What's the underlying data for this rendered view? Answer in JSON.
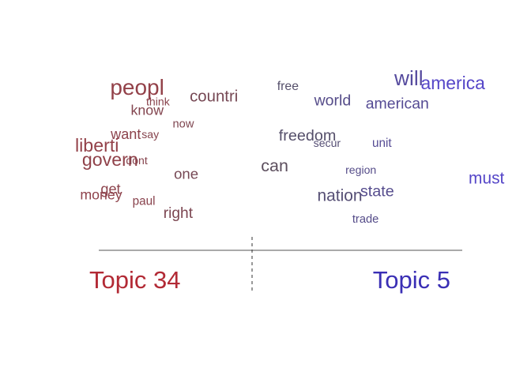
{
  "chart_data": {
    "type": "scatter",
    "title": "",
    "xlabel": "",
    "ylabel": "",
    "topics": {
      "left": {
        "label": "Topic 34",
        "color": "#b22a35"
      },
      "right": {
        "label": "Topic 5",
        "color": "#3a2fb5"
      }
    },
    "xlim": [
      0,
      1
    ],
    "ylim": [
      0,
      1
    ],
    "words": [
      {
        "word": "peopl",
        "x": 0.105,
        "y": 0.89,
        "weight": 1.0,
        "lean": 0.02
      },
      {
        "word": "think",
        "x": 0.175,
        "y": 0.82,
        "weight": 0.18,
        "lean": 0.1
      },
      {
        "word": "countri",
        "x": 0.298,
        "y": 0.845,
        "weight": 0.55,
        "lean": 0.25
      },
      {
        "word": "know",
        "x": 0.144,
        "y": 0.76,
        "weight": 0.4,
        "lean": 0.15
      },
      {
        "word": "now",
        "x": 0.234,
        "y": 0.68,
        "weight": 0.22,
        "lean": 0.18
      },
      {
        "word": "want",
        "x": 0.093,
        "y": 0.605,
        "weight": 0.42,
        "lean": 0.08
      },
      {
        "word": "say",
        "x": 0.157,
        "y": 0.61,
        "weight": 0.18,
        "lean": 0.12
      },
      {
        "word": "liberti",
        "x": 0.0,
        "y": 0.525,
        "weight": 0.72,
        "lean": 0.02
      },
      {
        "word": "govern",
        "x": 0.048,
        "y": 0.435,
        "weight": 0.72,
        "lean": 0.05
      },
      {
        "word": "dont",
        "x": 0.125,
        "y": 0.445,
        "weight": 0.18,
        "lean": 0.12
      },
      {
        "word": "one",
        "x": 0.235,
        "y": 0.35,
        "weight": 0.45,
        "lean": 0.25
      },
      {
        "word": "get",
        "x": 0.057,
        "y": 0.255,
        "weight": 0.42,
        "lean": 0.08
      },
      {
        "word": "money",
        "x": 0.035,
        "y": 0.22,
        "weight": 0.4,
        "lean": 0.06
      },
      {
        "word": "paul",
        "x": 0.14,
        "y": 0.185,
        "weight": 0.25,
        "lean": 0.1
      },
      {
        "word": "right",
        "x": 0.215,
        "y": 0.1,
        "weight": 0.48,
        "lean": 0.2
      },
      {
        "word": "free",
        "x": 0.48,
        "y": 0.92,
        "weight": 0.28,
        "lean": 0.55
      },
      {
        "word": "will",
        "x": 0.75,
        "y": 0.95,
        "weight": 0.9,
        "lean": 0.8
      },
      {
        "word": "america",
        "x": 0.97,
        "y": 0.925,
        "weight": 0.7,
        "lean": 1.0
      },
      {
        "word": "world",
        "x": 0.58,
        "y": 0.82,
        "weight": 0.5,
        "lean": 0.7
      },
      {
        "word": "american",
        "x": 0.733,
        "y": 0.8,
        "weight": 0.5,
        "lean": 0.75
      },
      {
        "word": "freedom",
        "x": 0.52,
        "y": 0.595,
        "weight": 0.52,
        "lean": 0.55
      },
      {
        "word": "secur",
        "x": 0.575,
        "y": 0.555,
        "weight": 0.18,
        "lean": 0.6
      },
      {
        "word": "unit",
        "x": 0.703,
        "y": 0.555,
        "weight": 0.25,
        "lean": 0.75
      },
      {
        "word": "can",
        "x": 0.44,
        "y": 0.4,
        "weight": 0.62,
        "lean": 0.45
      },
      {
        "word": "region",
        "x": 0.655,
        "y": 0.385,
        "weight": 0.18,
        "lean": 0.7
      },
      {
        "word": "must",
        "x": 0.942,
        "y": 0.32,
        "weight": 0.58,
        "lean": 1.0
      },
      {
        "word": "nation",
        "x": 0.595,
        "y": 0.21,
        "weight": 0.58,
        "lean": 0.6
      },
      {
        "word": "state",
        "x": 0.685,
        "y": 0.24,
        "weight": 0.52,
        "lean": 0.72
      },
      {
        "word": "trade",
        "x": 0.665,
        "y": 0.07,
        "weight": 0.22,
        "lean": 0.7
      }
    ]
  }
}
